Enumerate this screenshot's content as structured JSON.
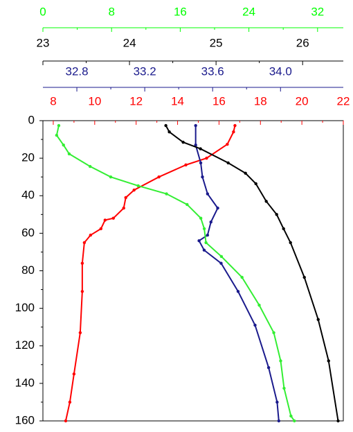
{
  "chart_data": {
    "type": "profile",
    "ylim": [
      0,
      160
    ],
    "yticks": [
      0,
      20,
      40,
      60,
      80,
      100,
      120,
      140,
      160
    ],
    "y_inverted": true,
    "x_axes": [
      {
        "color": "#00ff00",
        "xlim": [
          0,
          35
        ],
        "xticks": [
          0,
          8,
          16,
          24,
          32
        ]
      },
      {
        "color": "#000000",
        "xlim": [
          23,
          26.47
        ],
        "xticks": [
          23,
          24,
          25,
          26
        ]
      },
      {
        "color": "#1a1a8c",
        "xlim": [
          32.6,
          34.37
        ],
        "xticks": [
          32.8,
          33.2,
          33.6,
          {
            "value": 34.0,
            "label": "34.0"
          }
        ]
      },
      {
        "color": "#ff0000",
        "xlim": [
          7.5,
          22
        ],
        "xticks": [
          8,
          10,
          12,
          14,
          16,
          18,
          20,
          22
        ]
      }
    ],
    "series": [
      {
        "color": "#ff0000",
        "axis": 3,
        "depth": [
          2.6,
          6,
          12.6,
          20,
          23.6,
          30,
          37,
          41,
          46.6,
          52,
          53,
          57.6,
          61,
          65,
          76,
          91,
          113,
          135,
          150,
          160
        ],
        "values": [
          16.77,
          16.7,
          16.4,
          15.4,
          14.4,
          13.1,
          11.9,
          11.5,
          11.4,
          10.9,
          10.5,
          10.3,
          9.8,
          9.5,
          9.4,
          9.4,
          9.3,
          9.0,
          8.8,
          8.6
        ]
      },
      {
        "color": "#1a1a8c",
        "axis": 2,
        "depth": [
          2.6,
          13,
          22.5,
          30,
          39,
          46.6,
          54,
          61,
          64,
          69,
          76,
          91,
          109,
          131.6,
          150,
          160
        ],
        "values": [
          33.5,
          33.5,
          33.53,
          33.54,
          33.57,
          33.63,
          33.59,
          33.57,
          33.52,
          33.55,
          33.65,
          33.75,
          33.85,
          33.93,
          33.98,
          33.99
        ]
      },
      {
        "color": "#000000",
        "axis": 1,
        "depth": [
          2.6,
          6,
          11.5,
          15,
          22.5,
          28,
          33.6,
          43,
          50,
          57.6,
          65,
          83.5,
          106,
          128,
          160
        ],
        "values": [
          24.42,
          24.46,
          24.62,
          24.82,
          25.14,
          25.34,
          25.46,
          25.58,
          25.7,
          25.78,
          25.86,
          26.02,
          26.18,
          26.3,
          26.41
        ]
      },
      {
        "color": "#33ee33",
        "axis": 0,
        "depth": [
          2.6,
          7.8,
          13,
          17.7,
          24.4,
          30,
          34.7,
          39,
          44.7,
          52,
          57.6,
          65,
          72.4,
          83.5,
          98.3,
          113,
          128,
          142.6,
          157.4,
          160
        ],
        "values": [
          1.85,
          1.6,
          2.4,
          3.06,
          5.5,
          7.9,
          11.1,
          14.4,
          16.8,
          18.4,
          18.8,
          19.0,
          20.8,
          23.2,
          25.2,
          26.9,
          27.7,
          28.1,
          28.9,
          29.3
        ]
      }
    ]
  }
}
